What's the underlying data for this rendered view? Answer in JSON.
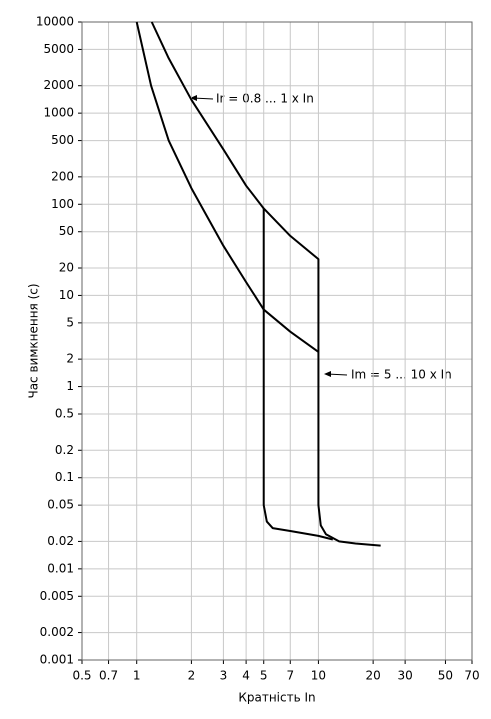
{
  "chart_data": {
    "type": "line",
    "xlabel": "Кратність In",
    "ylabel": "Час вимкнення (с)",
    "xscale": "log",
    "yscale": "log",
    "grid": true,
    "xlim": [
      0.5,
      70
    ],
    "ylim": [
      0.001,
      10000
    ],
    "xticks": [
      0.5,
      0.7,
      1,
      2,
      3,
      4,
      5,
      7,
      10,
      20,
      30,
      50,
      70
    ],
    "yticks": [
      10000,
      5000,
      2000,
      1000,
      500,
      200,
      100,
      50,
      20,
      10,
      5,
      2,
      1,
      0.5,
      0.2,
      0.1,
      0.05,
      0.02,
      0.01,
      0.005,
      0.002,
      0.001
    ],
    "annotations": [
      "Ir = 0.8 ... 1 x In",
      "Im = 5 ... 10 x In"
    ],
    "series": [
      {
        "color": "#000000",
        "x": [
          1.21,
          1.5,
          2,
          3,
          4,
          5,
          7,
          10,
          10,
          10.3,
          11,
          13,
          16,
          22
        ],
        "values": [
          10000,
          4000,
          1400,
          400,
          160,
          90,
          45,
          25,
          0.05,
          0.03,
          0.024,
          0.02,
          0.019,
          0.018
        ]
      },
      {
        "color": "#000000",
        "x": [
          1,
          1.2,
          1.5,
          2,
          3,
          4,
          5,
          7,
          10
        ],
        "values": [
          10000,
          2000,
          500,
          150,
          35,
          14,
          7,
          4,
          2.4
        ]
      },
      {
        "color": "#000000",
        "x": [
          5,
          5,
          5.2,
          5.6,
          7,
          10,
          12
        ],
        "values": [
          90,
          0.05,
          0.033,
          0.028,
          0.026,
          0.023,
          0.021
        ]
      }
    ]
  }
}
